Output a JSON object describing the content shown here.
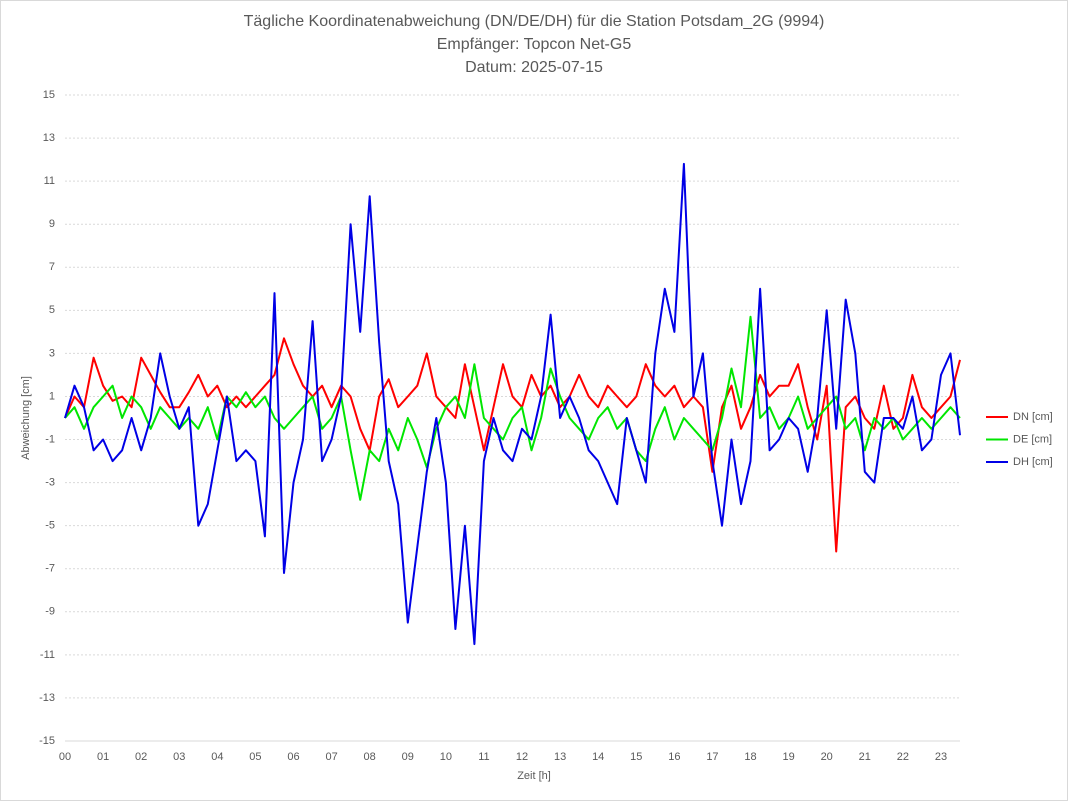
{
  "chart_data": {
    "type": "line",
    "title": "Tägliche Koordinatenabweichung (DN/DE/DH) für die Station Potsdam_2G (9994)",
    "subtitle": [
      "Empfänger: Topcon Net-G5",
      "Datum: 2025-07-15"
    ],
    "xlabel": "Zeit [h]",
    "ylabel": "Abweichung [cm]",
    "x": [
      0,
      0.25,
      0.5,
      0.75,
      1,
      1.25,
      1.5,
      1.75,
      2,
      2.25,
      2.5,
      2.75,
      3,
      3.25,
      3.5,
      3.75,
      4,
      4.25,
      4.5,
      4.75,
      5,
      5.25,
      5.5,
      5.75,
      6,
      6.25,
      6.5,
      6.75,
      7,
      7.25,
      7.5,
      7.75,
      8,
      8.25,
      8.5,
      8.75,
      9,
      9.25,
      9.5,
      9.75,
      10,
      10.25,
      10.5,
      10.75,
      11,
      11.25,
      11.5,
      11.75,
      12,
      12.25,
      12.5,
      12.75,
      13,
      13.25,
      13.5,
      13.75,
      14,
      14.25,
      14.5,
      14.75,
      15,
      15.25,
      15.5,
      15.75,
      16,
      16.25,
      16.5,
      16.75,
      17,
      17.25,
      17.5,
      17.75,
      18,
      18.25,
      18.5,
      18.75,
      19,
      19.25,
      19.5,
      19.75,
      20,
      20.25,
      20.5,
      20.75,
      21,
      21.25,
      21.5,
      21.75,
      22,
      22.25,
      22.5,
      22.75,
      23,
      23.25,
      23.5
    ],
    "series": [
      {
        "name": "DN [cm]",
        "color": "#ff0000",
        "values": [
          0,
          1,
          0.5,
          2.8,
          1.5,
          0.8,
          1,
          0.5,
          2.8,
          2,
          1.2,
          0.5,
          0.5,
          1.2,
          2,
          1,
          1.5,
          0.5,
          1,
          0.5,
          1,
          1.5,
          2,
          3.7,
          2.5,
          1.5,
          1,
          1.5,
          0.5,
          1.5,
          1,
          -0.5,
          -1.5,
          1,
          1.8,
          0.5,
          1,
          1.5,
          3,
          1,
          0.5,
          0,
          2.5,
          0.5,
          -1.5,
          0.5,
          2.5,
          1,
          0.5,
          2,
          1,
          1.5,
          0.5,
          1,
          2,
          1,
          0.5,
          1.5,
          1,
          0.5,
          1,
          2.5,
          1.5,
          1,
          1.5,
          0.5,
          1,
          0.5,
          -2.5,
          0.5,
          1.5,
          -0.5,
          0.5,
          2,
          1,
          1.5,
          1.5,
          2.5,
          0.5,
          -1,
          1.5,
          -6.2,
          0.5,
          1,
          0,
          -0.5,
          1.5,
          -0.5,
          0,
          2,
          0.5,
          0,
          0.5,
          1,
          2.7
        ]
      },
      {
        "name": "DE [cm]",
        "color": "#00e600",
        "values": [
          0,
          0.5,
          -0.5,
          0.5,
          1,
          1.5,
          0,
          1,
          0.5,
          -0.5,
          0.5,
          0,
          -0.5,
          0,
          -0.5,
          0.5,
          -1,
          1,
          0.5,
          1.2,
          0.5,
          1,
          0,
          -0.5,
          0,
          0.5,
          1,
          -0.5,
          0,
          1,
          -1.5,
          -3.8,
          -1.5,
          -2,
          -0.5,
          -1.5,
          0,
          -1,
          -2.3,
          -0.5,
          0.5,
          1,
          0,
          2.5,
          0,
          -0.5,
          -1,
          0,
          0.5,
          -1.5,
          0,
          2.3,
          1,
          0,
          -0.5,
          -1,
          0,
          0.5,
          -0.5,
          0,
          -1.5,
          -2,
          -0.5,
          0.5,
          -1,
          0,
          -0.5,
          -1,
          -1.5,
          0,
          2.3,
          0.5,
          4.7,
          0,
          0.5,
          -0.5,
          0,
          1,
          -0.5,
          0,
          0.5,
          1,
          -0.5,
          0,
          -1.5,
          0,
          -0.5,
          0,
          -1,
          -0.5,
          0,
          -0.5,
          0,
          0.5,
          0
        ]
      },
      {
        "name": "DH [cm]",
        "color": "#0000e6",
        "values": [
          0,
          1.5,
          0.5,
          -1.5,
          -1,
          -2,
          -1.5,
          0,
          -1.5,
          0,
          3,
          1,
          -0.5,
          0.5,
          -5,
          -4,
          -1.5,
          1,
          -2,
          -1.5,
          -2,
          -5.5,
          5.8,
          -7.2,
          -3,
          -1,
          4.5,
          -2,
          -1,
          1,
          9,
          4,
          10.3,
          3.5,
          -2,
          -4,
          -9.5,
          -6,
          -2.5,
          0,
          -3,
          -9.8,
          -5,
          -10.5,
          -2,
          0,
          -1.5,
          -2,
          -0.5,
          -1,
          1,
          4.8,
          0,
          1,
          0,
          -1.5,
          -2,
          -3,
          -4,
          0,
          -1.5,
          -3,
          3,
          6,
          4,
          11.8,
          1,
          3,
          -2,
          -5,
          -1,
          -4,
          -2,
          6,
          -1.5,
          -1,
          0,
          -0.5,
          -2.5,
          0,
          5,
          -0.5,
          5.5,
          3,
          -2.5,
          -3,
          0,
          0,
          -0.5,
          1,
          -1.5,
          -1,
          2,
          3,
          -0.8
        ]
      }
    ],
    "xlim": [
      0,
      23.5
    ],
    "xticks": [
      {
        "value": 0,
        "label": "00"
      },
      {
        "value": 1,
        "label": "01"
      },
      {
        "value": 2,
        "label": "02"
      },
      {
        "value": 3,
        "label": "03"
      },
      {
        "value": 4,
        "label": "04"
      },
      {
        "value": 5,
        "label": "05"
      },
      {
        "value": 6,
        "label": "06"
      },
      {
        "value": 7,
        "label": "07"
      },
      {
        "value": 8,
        "label": "08"
      },
      {
        "value": 9,
        "label": "09"
      },
      10,
      11,
      12,
      13,
      14,
      15,
      16,
      17,
      18,
      19,
      20,
      21,
      22,
      23
    ],
    "ylim": [
      -15,
      15
    ],
    "yticks": [
      -15,
      -13,
      -11,
      -9,
      -7,
      -5,
      -3,
      -1,
      1,
      3,
      5,
      7,
      9,
      11,
      13,
      15
    ],
    "grid": true,
    "legend": "right"
  }
}
